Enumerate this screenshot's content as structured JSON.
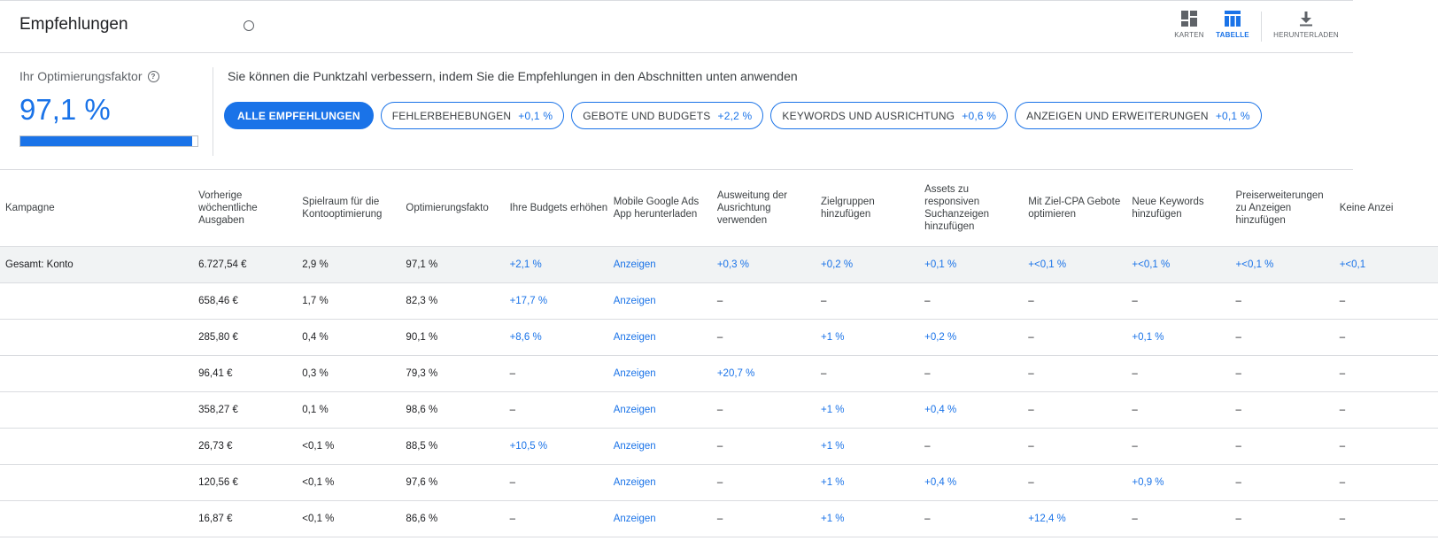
{
  "header": {
    "title": "Empfehlungen",
    "views": {
      "karten": "KARTEN",
      "tabelle": "TABELLE",
      "download": "HERUNTERLADEN"
    }
  },
  "summary": {
    "score_label": "Ihr Optimierungsfaktor",
    "score_value": "97,1 %",
    "score_progress": 0.971,
    "improve_text": "Sie können die Punktzahl verbessern, indem Sie die Empfehlungen in den Abschnitten unten anwenden",
    "chips": [
      {
        "label": "ALLE EMPFEHLUNGEN",
        "delta": ""
      },
      {
        "label": "FEHLERBEHEBUNGEN",
        "delta": "+0,1 %"
      },
      {
        "label": "GEBOTE UND BUDGETS",
        "delta": "+2,2 %"
      },
      {
        "label": "KEYWORDS UND AUSRICHTUNG",
        "delta": "+0,6 %"
      },
      {
        "label": "ANZEIGEN UND ERWEITERUNGEN",
        "delta": "+0,1 %"
      }
    ]
  },
  "table": {
    "columns": [
      "Kampagne",
      "Vorherige wöchentliche Ausgaben",
      "Spielraum für die Kontooptimierung",
      "Optimierungsfakto",
      "Ihre Budgets erhöhen",
      "Mobile Google Ads App herunterladen",
      "Ausweitung der Ausrichtung verwenden",
      "Zielgruppen hinzufügen",
      "Assets zu responsiven Suchanzeigen hinzufügen",
      "Mit Ziel-CPA Gebote optimieren",
      "Neue Keywords hinzufügen",
      "Preiserweiterungen zu Anzeigen hinzufügen",
      "Keine Anzei"
    ],
    "rows": [
      [
        "Gesamt: Konto",
        "6.727,54 €",
        "2,9 %",
        "97,1 %",
        "+2,1 %",
        "Anzeigen",
        "+0,3 %",
        "+0,2 %",
        "+0,1 %",
        "+<0,1 %",
        "+<0,1 %",
        "+<0,1 %",
        "+<0,1"
      ],
      [
        "",
        "658,46 €",
        "1,7 %",
        "82,3 %",
        "+17,7 %",
        "Anzeigen",
        "–",
        "–",
        "–",
        "–",
        "–",
        "–",
        "–"
      ],
      [
        "",
        "285,80 €",
        "0,4 %",
        "90,1 %",
        "+8,6 %",
        "Anzeigen",
        "–",
        "+1 %",
        "+0,2 %",
        "–",
        "+0,1 %",
        "–",
        "–"
      ],
      [
        "",
        "96,41 €",
        "0,3 %",
        "79,3 %",
        "–",
        "Anzeigen",
        "+20,7 %",
        "–",
        "–",
        "–",
        "–",
        "–",
        "–"
      ],
      [
        "",
        "358,27 €",
        "0,1 %",
        "98,6 %",
        "–",
        "Anzeigen",
        "–",
        "+1 %",
        "+0,4 %",
        "–",
        "–",
        "–",
        "–"
      ],
      [
        "",
        "26,73 €",
        "<0,1 %",
        "88,5 %",
        "+10,5 %",
        "Anzeigen",
        "–",
        "+1 %",
        "–",
        "–",
        "–",
        "–",
        "–"
      ],
      [
        "",
        "120,56 €",
        "<0,1 %",
        "97,6 %",
        "–",
        "Anzeigen",
        "–",
        "+1 %",
        "+0,4 %",
        "–",
        "+0,9 %",
        "–",
        "–"
      ],
      [
        "",
        "16,87 €",
        "<0,1 %",
        "86,6 %",
        "–",
        "Anzeigen",
        "–",
        "+1 %",
        "–",
        "+12,4 %",
        "–",
        "–",
        "–"
      ]
    ]
  },
  "colors": {
    "accent": "#1a73e8",
    "total_row_bg": "#f1f3f4",
    "divider": "#dadce0"
  }
}
